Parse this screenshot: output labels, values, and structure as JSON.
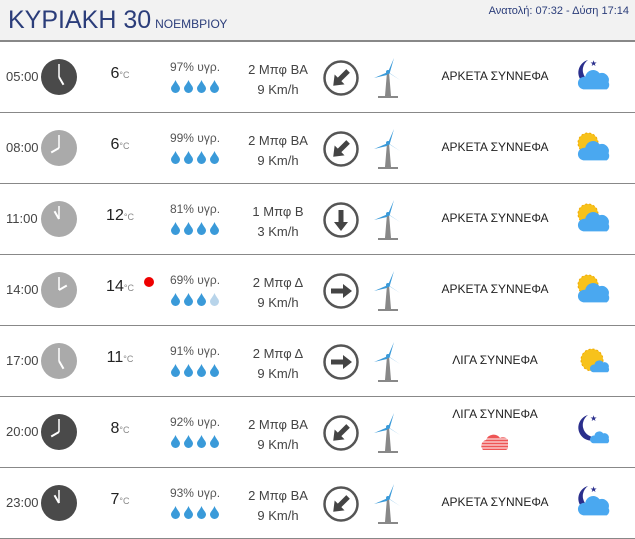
{
  "header": {
    "day": "ΚΥΡΙΑΚΗ 30",
    "month": "ΝΟΕΜΒΡΙΟΥ",
    "sun": "Ανατολή: 07:32 - Δύση 17:14"
  },
  "unit": "°C",
  "colors": {
    "title": "#2b3d7a",
    "drop": "#3a9ad9",
    "max_dot": "#ee0000"
  },
  "rows": [
    {
      "time": "05:00",
      "hour": 5,
      "night": true,
      "temp": "6",
      "hum": "97% υγρ.",
      "drops": 4,
      "wind": "2 Μπφ ΒΑ",
      "speed": "9 Km/h",
      "dir": "BA",
      "desc": "ΑΡΚΕΤΑ ΣΥΝΝΕΦΑ",
      "icon": "moon-cloud-icon"
    },
    {
      "time": "08:00",
      "hour": 8,
      "night": false,
      "temp": "6",
      "hum": "99% υγρ.",
      "drops": 4,
      "wind": "2 Μπφ ΒΑ",
      "speed": "9 Km/h",
      "dir": "BA",
      "desc": "ΑΡΚΕΤΑ ΣΥΝΝΕΦΑ",
      "icon": "sun-cloud-icon"
    },
    {
      "time": "11:00",
      "hour": 11,
      "night": false,
      "temp": "12",
      "hum": "81% υγρ.",
      "drops": 4,
      "wind": "1 Μπφ Β",
      "speed": "3 Km/h",
      "dir": "B",
      "desc": "ΑΡΚΕΤΑ ΣΥΝΝΕΦΑ",
      "icon": "sun-cloud-icon"
    },
    {
      "time": "14:00",
      "hour": 14,
      "night": false,
      "temp": "14",
      "max": true,
      "hum": "69% υγρ.",
      "drops": 3,
      "wind": "2 Μπφ Δ",
      "speed": "9 Km/h",
      "dir": "D",
      "desc": "ΑΡΚΕΤΑ ΣΥΝΝΕΦΑ",
      "icon": "sun-cloud-icon"
    },
    {
      "time": "17:00",
      "hour": 17,
      "night": false,
      "temp": "11",
      "hum": "91% υγρ.",
      "drops": 4,
      "wind": "2 Μπφ Δ",
      "speed": "9 Km/h",
      "dir": "D",
      "desc": "ΛΙΓΑ ΣΥΝΝΕΦΑ",
      "icon": "sun-small-cloud-icon"
    },
    {
      "time": "20:00",
      "hour": 20,
      "night": true,
      "temp": "8",
      "hum": "92% υγρ.",
      "drops": 4,
      "wind": "2 Μπφ ΒΑ",
      "speed": "9 Km/h",
      "dir": "BA",
      "desc": "ΛΙΓΑ ΣΥΝΝΕΦΑ",
      "fog": true,
      "icon": "moon-small-cloud-icon"
    },
    {
      "time": "23:00",
      "hour": 23,
      "night": true,
      "temp": "7",
      "hum": "93% υγρ.",
      "drops": 4,
      "wind": "2 Μπφ ΒΑ",
      "speed": "9 Km/h",
      "dir": "BA",
      "desc": "ΑΡΚΕΤΑ ΣΥΝΝΕΦΑ",
      "icon": "moon-cloud-icon"
    }
  ]
}
